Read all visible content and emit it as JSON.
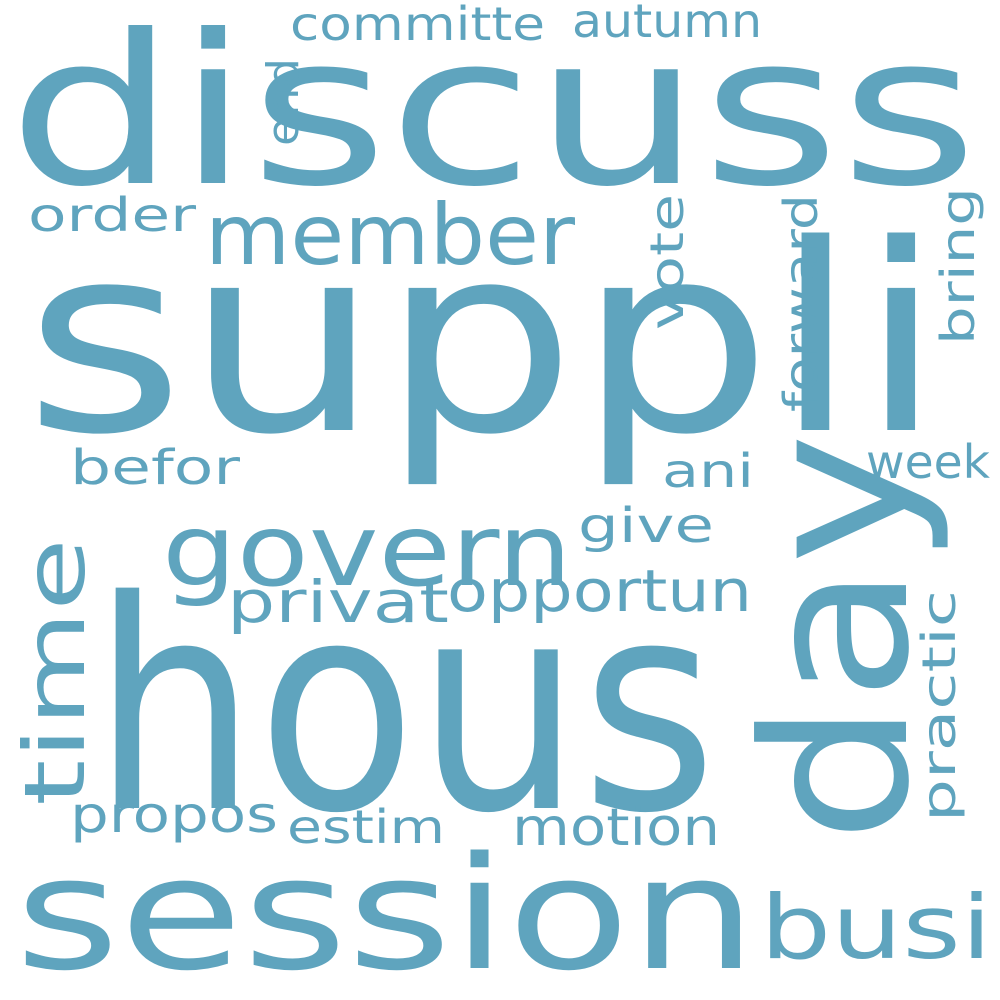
{
  "word_color": "#5fa4be",
  "background": "#ffffff",
  "words": {
    "discuss": "discuss",
    "suppli": "suppli",
    "hous": "hous",
    "session": "session",
    "day": "day",
    "member": "member",
    "govern": "govern",
    "time": "time",
    "busi": "busi",
    "privat": "privat",
    "opportun": "opportun",
    "committe": "committe",
    "autumn": "autumn",
    "end": "end",
    "order": "order",
    "vote": "vote",
    "forward": "forward",
    "bring": "bring",
    "befor": "befor",
    "ani": "ani",
    "week": "week",
    "give": "give",
    "practic": "practic",
    "propos": "propos",
    "estim": "estim",
    "motion": "motion"
  }
}
